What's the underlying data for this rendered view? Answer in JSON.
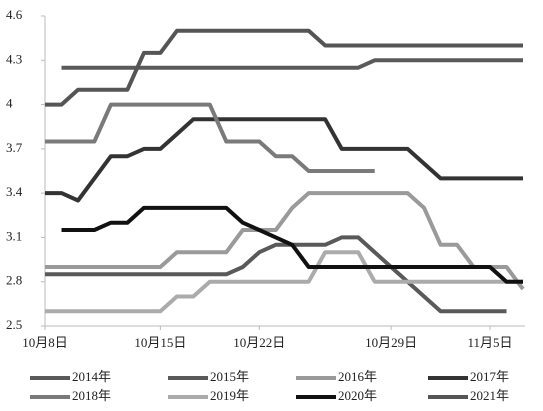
{
  "chart_data": {
    "type": "line",
    "categories": [
      "10月8日",
      null,
      null,
      null,
      null,
      null,
      null,
      "10月15日",
      null,
      null,
      null,
      null,
      null,
      "10月22日",
      null,
      null,
      null,
      null,
      null,
      null,
      null,
      "10月29日",
      null,
      null,
      null,
      null,
      null,
      "11月5日",
      null,
      null
    ],
    "ylim": [
      2.5,
      4.6
    ],
    "yticks": [
      2.5,
      2.8,
      3.1,
      3.4,
      3.7,
      4,
      4.3,
      4.6
    ],
    "grid": false,
    "legend": "bottom",
    "series": [
      {
        "name": "2014年",
        "color": "#595959",
        "values": [
          2.85,
          2.85,
          2.85,
          2.85,
          2.85,
          2.85,
          2.85,
          2.85,
          2.85,
          2.85,
          2.85,
          2.85,
          2.9,
          3.0,
          3.05,
          3.05,
          3.05,
          3.05,
          3.1,
          3.1,
          3.0,
          2.9,
          2.8,
          2.7,
          2.6,
          2.6,
          2.6,
          2.6,
          2.6,
          null
        ]
      },
      {
        "name": "2015年",
        "color": "#5a5a5a",
        "values": [
          null,
          4.25,
          4.25,
          4.25,
          4.25,
          4.25,
          4.25,
          4.25,
          4.25,
          4.25,
          4.25,
          4.25,
          4.25,
          4.25,
          4.25,
          4.25,
          4.25,
          4.25,
          4.25,
          4.25,
          4.3,
          4.3,
          4.3,
          4.3,
          4.3,
          4.3,
          4.3,
          4.3,
          4.3,
          4.3
        ]
      },
      {
        "name": "2016年",
        "color": "#9a9a9a",
        "values": [
          2.9,
          2.9,
          2.9,
          2.9,
          2.9,
          2.9,
          2.9,
          2.9,
          3.0,
          3.0,
          3.0,
          3.0,
          3.15,
          3.15,
          3.15,
          3.3,
          3.4,
          3.4,
          3.4,
          3.4,
          3.4,
          3.4,
          3.4,
          3.3,
          3.05,
          3.05,
          2.9,
          2.9,
          2.9,
          2.75
        ]
      },
      {
        "name": "2017年",
        "color": "#333333",
        "values": [
          3.4,
          3.4,
          3.35,
          3.5,
          3.65,
          3.65,
          3.7,
          3.7,
          3.8,
          3.9,
          3.9,
          3.9,
          3.9,
          3.9,
          3.9,
          3.9,
          3.9,
          3.9,
          3.7,
          3.7,
          3.7,
          3.7,
          3.7,
          3.6,
          3.5,
          3.5,
          3.5,
          3.5,
          3.5,
          3.5
        ]
      },
      {
        "name": "2018年",
        "color": "#7a7a7a",
        "values": [
          3.75,
          3.75,
          3.75,
          3.75,
          4.0,
          4.0,
          4.0,
          4.0,
          4.0,
          4.0,
          4.0,
          3.75,
          3.75,
          3.75,
          3.65,
          3.65,
          3.55,
          3.55,
          3.55,
          3.55,
          3.55,
          null,
          null,
          null,
          null,
          null,
          null,
          null,
          null,
          null
        ]
      },
      {
        "name": "2019年",
        "color": "#ababab",
        "values": [
          2.6,
          2.6,
          2.6,
          2.6,
          2.6,
          2.6,
          2.6,
          2.6,
          2.7,
          2.7,
          2.8,
          2.8,
          2.8,
          2.8,
          2.8,
          2.8,
          2.8,
          3.0,
          3.0,
          3.0,
          2.8,
          2.8,
          2.8,
          2.8,
          2.8,
          2.8,
          2.8,
          2.8,
          2.8,
          2.8
        ]
      },
      {
        "name": "2020年",
        "color": "#111111",
        "values": [
          null,
          3.15,
          3.15,
          3.15,
          3.2,
          3.2,
          3.3,
          3.3,
          3.3,
          3.3,
          3.3,
          3.3,
          3.2,
          3.15,
          3.1,
          3.05,
          2.9,
          2.9,
          2.9,
          2.9,
          2.9,
          2.9,
          2.9,
          2.9,
          2.9,
          2.9,
          2.9,
          2.9,
          2.8,
          2.8
        ]
      },
      {
        "name": "2021年",
        "color": "#555555",
        "values": [
          4.0,
          4.0,
          4.1,
          4.1,
          4.1,
          4.1,
          4.35,
          4.35,
          4.5,
          4.5,
          4.5,
          4.5,
          4.5,
          4.5,
          4.5,
          4.5,
          4.5,
          4.4,
          4.4,
          4.4,
          4.4,
          4.4,
          4.4,
          4.4,
          4.4,
          4.4,
          4.4,
          4.4,
          4.4,
          4.4
        ]
      }
    ]
  }
}
